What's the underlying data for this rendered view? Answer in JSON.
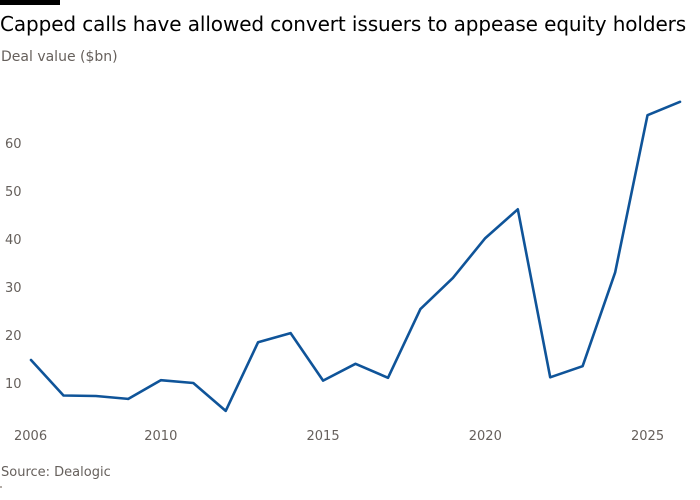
{
  "chart_data": {
    "type": "line",
    "title": "Capped calls have allowed convert issuers to appease equity holders",
    "subtitle": "Deal value ($bn)",
    "source": "Source: Dealogic",
    "ylim": [
      0,
      70
    ],
    "xlim": [
      2006,
      2026
    ],
    "y_ticks": [
      10,
      20,
      30,
      40,
      50,
      60
    ],
    "x_ticks": [
      2006,
      2010,
      2015,
      2020,
      2025
    ],
    "grid": false,
    "line_color": "#0f5499",
    "series": [
      {
        "x": [
          2006,
          2007,
          2008,
          2009,
          2010,
          2011,
          2012,
          2013,
          2014,
          2015,
          2016,
          2017,
          2018,
          2019,
          2020,
          2021,
          2022,
          2023,
          2024,
          2025,
          2026
        ],
        "values": [
          15,
          7.6,
          7.5,
          6.9,
          10.8,
          10.2,
          4.4,
          18.7,
          20.6,
          10.7,
          14.2,
          11.3,
          25.6,
          32.1,
          40.4,
          46.4,
          11.4,
          13.7,
          33.2,
          66,
          68.8
        ]
      }
    ]
  }
}
